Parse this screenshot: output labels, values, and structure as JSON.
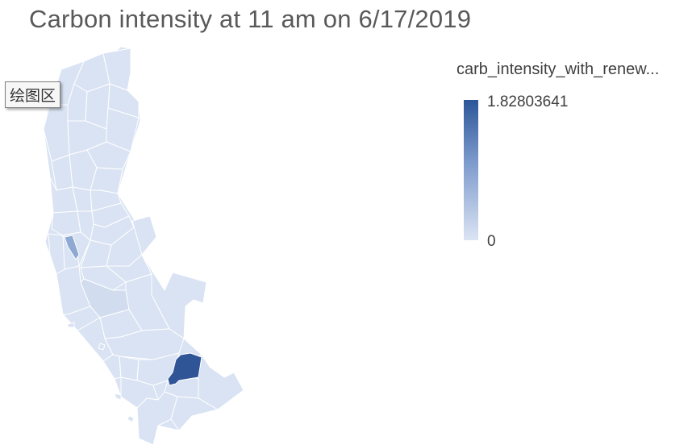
{
  "title": "Carbon intensity at 11 am on 6/17/2019",
  "tooltip": "绘图区",
  "legend": {
    "title": "carb_intensity_with_renew...",
    "max_label": "1.82803641",
    "min_label": "0",
    "max": 1.82803641,
    "min": 0,
    "color_high": "#2c5699",
    "color_low": "#dbe4f3"
  },
  "colors": {
    "region_base": "#dae3f3",
    "region_mid": "#8ea9d2",
    "region_high": "#2f5597"
  }
}
